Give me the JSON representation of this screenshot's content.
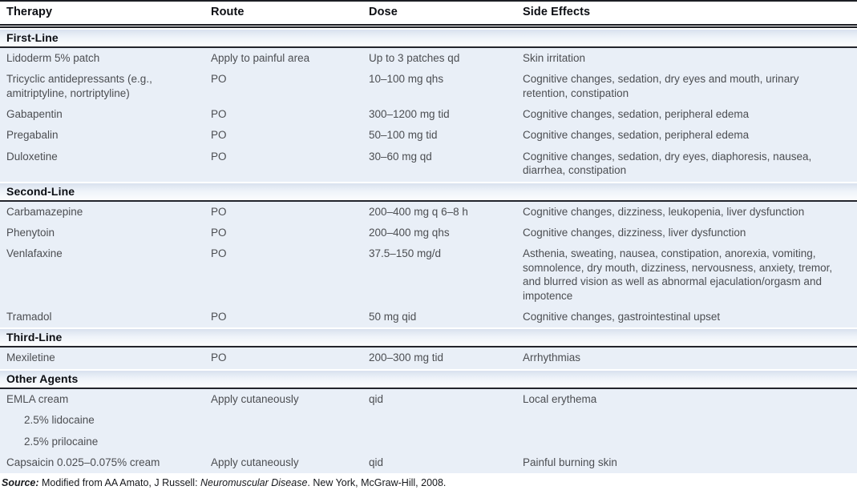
{
  "columns": [
    "Therapy",
    "Route",
    "Dose",
    "Side Effects"
  ],
  "sections": [
    {
      "label": "First-Line",
      "rows": [
        {
          "therapy": "Lidoderm 5% patch",
          "route": "Apply to painful area",
          "dose": "Up to 3 patches qd",
          "side_effects": "Skin irritation"
        },
        {
          "therapy": "Tricyclic antidepressants (e.g., amitriptyline, nortriptyline)",
          "route": "PO",
          "dose": "10–100 mg qhs",
          "side_effects": "Cognitive changes, sedation, dry eyes and mouth, urinary retention, constipation"
        },
        {
          "therapy": "Gabapentin",
          "route": "PO",
          "dose": "300–1200 mg tid",
          "side_effects": "Cognitive changes, sedation, peripheral edema"
        },
        {
          "therapy": "Pregabalin",
          "route": "PO",
          "dose": "50–100 mg tid",
          "side_effects": "Cognitive changes, sedation, peripheral edema"
        },
        {
          "therapy": "Duloxetine",
          "route": "PO",
          "dose": "30–60 mg qd",
          "side_effects": "Cognitive changes, sedation, dry eyes, diaphoresis, nausea, diarrhea, constipation"
        }
      ]
    },
    {
      "label": "Second-Line",
      "rows": [
        {
          "therapy": "Carbamazepine",
          "route": "PO",
          "dose": "200–400 mg q 6–8 h",
          "side_effects": "Cognitive changes, dizziness, leukopenia, liver dysfunction"
        },
        {
          "therapy": "Phenytoin",
          "route": "PO",
          "dose": "200–400 mg qhs",
          "side_effects": "Cognitive changes, dizziness, liver dysfunction"
        },
        {
          "therapy": "Venlafaxine",
          "route": "PO",
          "dose": "37.5–150 mg/d",
          "side_effects": "Asthenia, sweating, nausea, constipation, anorexia, vomiting, somnolence, dry mouth, dizziness, nervousness, anxiety, tremor, and blurred vision as well as abnormal ejaculation/orgasm and impotence"
        },
        {
          "therapy": "Tramadol",
          "route": "PO",
          "dose": "50 mg qid",
          "side_effects": "Cognitive changes, gastrointestinal upset"
        }
      ]
    },
    {
      "label": "Third-Line",
      "rows": [
        {
          "therapy": "Mexiletine",
          "route": "PO",
          "dose": "200–300 mg tid",
          "side_effects": "Arrhythmias"
        }
      ]
    },
    {
      "label": "Other Agents",
      "rows": [
        {
          "therapy": "EMLA cream",
          "sub_items": [
            "2.5% lidocaine",
            "2.5% prilocaine"
          ],
          "route": "Apply cutaneously",
          "dose": "qid",
          "side_effects": "Local erythema"
        },
        {
          "therapy": "Capsaicin 0.025–0.075% cream",
          "route": "Apply cutaneously",
          "dose": "qid",
          "side_effects": "Painful burning skin"
        }
      ]
    }
  ],
  "source": {
    "label": "Source:",
    "before_title": " Modified from AA Amato, J Russell: ",
    "title": "Neuromuscular Disease",
    "after_title": ". New York, McGraw-Hill, 2008."
  },
  "colors": {
    "row_background": "#e9eff7",
    "band_gradient_top": "#d9e1ee",
    "band_gradient_bottom": "#fcfdfe",
    "rule": "#1c1e24",
    "header_text": "#0c0e13",
    "body_text": "#4c4e52"
  }
}
